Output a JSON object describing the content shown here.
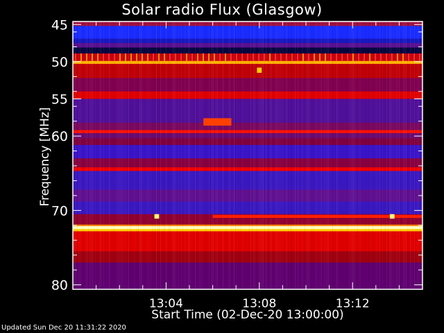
{
  "chart_data": {
    "type": "heatmap",
    "title": "Solar radio Flux (Glasgow)",
    "xlabel": "Start Time (02-Dec-20 13:00:00)",
    "ylabel": "Frequency [MHz]",
    "xlim_minutes_after_13_00": [
      0,
      15
    ],
    "ylim": [
      44.6,
      80.6
    ],
    "y_inverted": true,
    "xticks": [
      {
        "label": "13:04",
        "minute": 4
      },
      {
        "label": "13:08",
        "minute": 8
      },
      {
        "label": "13:12",
        "minute": 12
      }
    ],
    "yticks": [
      45,
      50,
      55,
      60,
      70,
      80
    ],
    "colormap": [
      "#000000",
      "#1a22ff",
      "#5a10a0",
      "#d00000",
      "#ff3000",
      "#ffd000",
      "#ffffff"
    ],
    "bands": [
      {
        "f": [
          44.6,
          45.2
        ],
        "color": "#a01040"
      },
      {
        "f": [
          45.2,
          46.9
        ],
        "color": "#1a2cff"
      },
      {
        "f": [
          46.9,
          47.5
        ],
        "color": "#1818c0"
      },
      {
        "f": [
          47.5,
          48.1
        ],
        "color": "#5a1090"
      },
      {
        "f": [
          48.1,
          48.9
        ],
        "color": "#060640"
      },
      {
        "f": [
          48.9,
          49.9
        ],
        "color": "#c80010"
      },
      {
        "f": [
          49.9,
          50.3
        ],
        "color": "#ffb000"
      },
      {
        "f": [
          50.3,
          52.2
        ],
        "color": "#c00008"
      },
      {
        "f": [
          52.2,
          54.0
        ],
        "color": "#800050"
      },
      {
        "f": [
          54.0,
          55.0
        ],
        "color": "#e00000"
      },
      {
        "f": [
          55.0,
          58.2
        ],
        "color": "#50109a"
      },
      {
        "f": [
          58.2,
          59.2
        ],
        "color": "#7a0860"
      },
      {
        "f": [
          59.2,
          59.6
        ],
        "color": "#ff1000"
      },
      {
        "f": [
          59.6,
          60.3
        ],
        "color": "#6a0a70"
      },
      {
        "f": [
          60.3,
          61.2
        ],
        "color": "#800040"
      },
      {
        "f": [
          61.2,
          63.0
        ],
        "color": "#3a14c8"
      },
      {
        "f": [
          63.0,
          64.2
        ],
        "color": "#880040"
      },
      {
        "f": [
          64.2,
          64.7
        ],
        "color": "#f00000"
      },
      {
        "f": [
          64.7,
          67.2
        ],
        "color": "#3a18c0"
      },
      {
        "f": [
          67.2,
          68.8
        ],
        "color": "#601090"
      },
      {
        "f": [
          68.8,
          70.5
        ],
        "color": "#3a18c0"
      },
      {
        "f": [
          70.5,
          71.9
        ],
        "color": "#900030"
      },
      {
        "f": [
          71.9,
          72.1
        ],
        "color": "#ff8000"
      },
      {
        "f": [
          72.1,
          72.5
        ],
        "color": "#ffffc0"
      },
      {
        "f": [
          72.5,
          72.8
        ],
        "color": "#ffd000"
      },
      {
        "f": [
          72.8,
          75.5
        ],
        "color": "#e00000"
      },
      {
        "f": [
          75.5,
          77.0
        ],
        "color": "#a00010"
      },
      {
        "f": [
          77.0,
          80.6
        ],
        "color": "#600070"
      }
    ],
    "features": [
      {
        "t": [
          7.9,
          8.1
        ],
        "f": [
          50.8,
          51.5
        ],
        "color": "#ffd000"
      },
      {
        "t": [
          5.6,
          6.8
        ],
        "f": [
          57.6,
          58.6
        ],
        "color": "#ff4000"
      },
      {
        "t": [
          6.0,
          15
        ],
        "f": [
          70.6,
          71.0
        ],
        "color": "#ff2000"
      },
      {
        "t": [
          3.5,
          3.7
        ],
        "f": [
          70.5,
          71.1
        ],
        "color": "#ffff80"
      },
      {
        "t": [
          13.6,
          13.8
        ],
        "f": [
          70.5,
          71.1
        ],
        "color": "#ffff80"
      }
    ]
  },
  "footer": {
    "updated": "Updated Sun Dec 20 11:31:22 2020"
  }
}
